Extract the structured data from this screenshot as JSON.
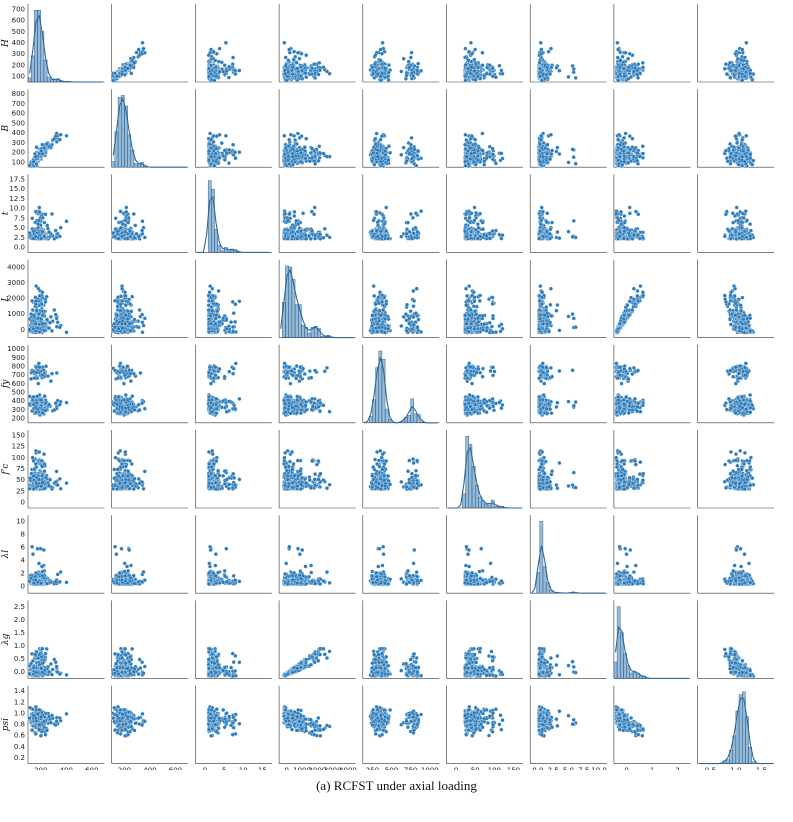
{
  "caption": "(a) RCFST under axial loading",
  "colors": {
    "points": "#2b7bba",
    "hist": "#3e82b8",
    "kde": "#2a6a9e"
  },
  "chart_data": {
    "type": "scatter",
    "subtype": "pair-plot",
    "diagonal": "histogram with KDE",
    "variables": [
      {
        "key": "H",
        "label": "H",
        "ticks": [
          "200",
          "400",
          "600"
        ],
        "ytick_labels": [
          "100",
          "200",
          "300",
          "400",
          "500",
          "600",
          "700"
        ],
        "lim": [
          50,
          760
        ]
      },
      {
        "key": "B",
        "label": "B",
        "ticks": [
          "200",
          "400",
          "600"
        ],
        "ytick_labels": [
          "100",
          "200",
          "300",
          "400",
          "500",
          "600",
          "700",
          "800"
        ],
        "lim": [
          40,
          760
        ]
      },
      {
        "key": "t",
        "label": "t",
        "ticks": [
          "0",
          "5",
          "10",
          "15"
        ],
        "ytick_labels": [
          "0.0",
          "2.5",
          "5.0",
          "7.5",
          "10.0",
          "12.5",
          "15.0",
          "17.5"
        ],
        "lim": [
          0,
          18.5
        ]
      },
      {
        "key": "L",
        "label": "L",
        "ticks": [
          "0",
          "1000",
          "2000",
          "3000",
          "4000"
        ],
        "ytick_labels": [
          "0",
          "1000",
          "2000",
          "3000",
          "4000"
        ],
        "lim": [
          0,
          4700
        ]
      },
      {
        "key": "fy",
        "label": "fy",
        "ticks": [
          "250",
          "500",
          "750",
          "1000"
        ],
        "ytick_labels": [
          "200",
          "300",
          "400",
          "500",
          "600",
          "700",
          "800",
          "900",
          "1000"
        ],
        "lim": [
          100,
          1080
        ]
      },
      {
        "key": "fc",
        "label": "f'c",
        "ticks": [
          "0",
          "50",
          "100",
          "150"
        ],
        "ytick_labels": [
          "0",
          "25",
          "50",
          "75",
          "100",
          "125",
          "150"
        ],
        "lim": [
          0,
          165
        ]
      },
      {
        "key": "lam",
        "label": "λl",
        "ticks": [
          "0.0",
          "2.5",
          "5.0",
          "7.5",
          "10.0"
        ],
        "ytick_labels": [
          "0",
          "2",
          "4",
          "6",
          "8",
          "10"
        ],
        "lim": [
          0,
          10.5
        ]
      },
      {
        "key": "lg",
        "label": "λg",
        "ticks": [
          "0",
          "1",
          "2"
        ],
        "ytick_labels": [
          "0.0",
          "0.5",
          "1.0",
          "1.5",
          "2.0",
          "2.5"
        ],
        "lim": [
          0,
          2.75
        ]
      },
      {
        "key": "psi",
        "label": "psi",
        "ticks": [
          "0.5",
          "1.0",
          "1.5"
        ],
        "ytick_labels": [
          "0.2",
          "0.4",
          "0.6",
          "0.8",
          "1.0",
          "1.2",
          "1.4"
        ],
        "lim": [
          0.1,
          1.5
        ]
      }
    ]
  }
}
